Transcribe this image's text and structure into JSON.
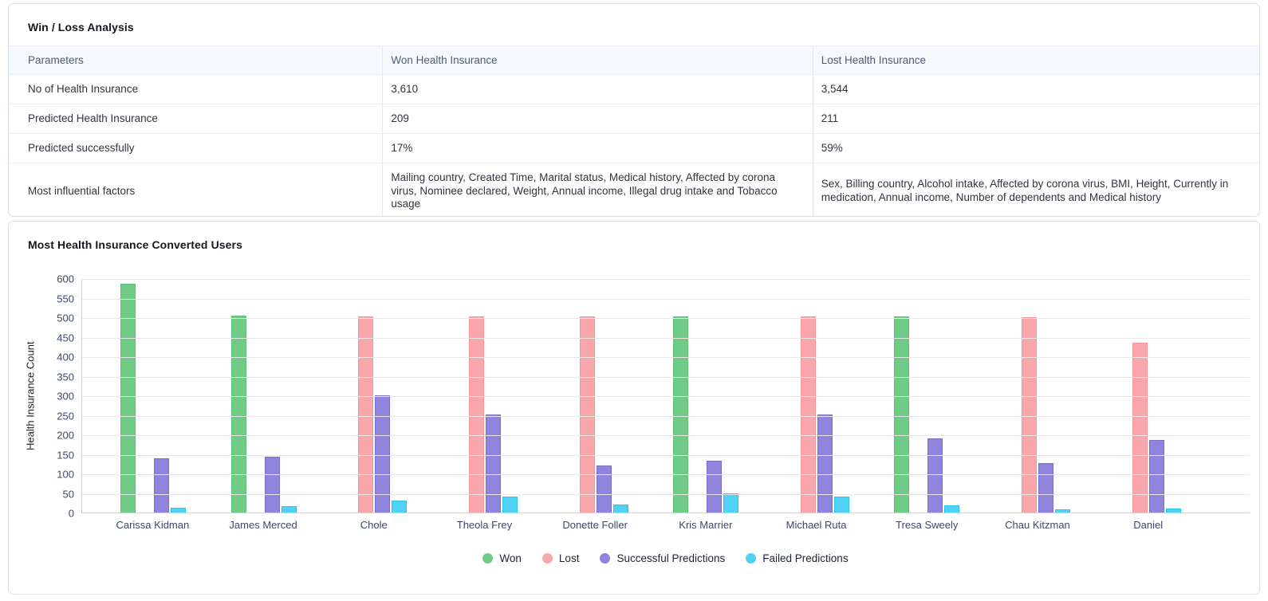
{
  "winloss": {
    "title": "Win / Loss Analysis",
    "table": {
      "columns": [
        "Parameters",
        "Won Health Insurance",
        "Lost Health Insurance"
      ],
      "rows": [
        [
          "No of Health Insurance",
          "3,610",
          "3,544"
        ],
        [
          "Predicted Health Insurance",
          "209",
          "211"
        ],
        [
          "Predicted successfully",
          "17%",
          "59%"
        ],
        [
          "Most influential factors",
          "Mailing country, Created Time, Marital status, Medical history, Affected by corona virus, Nominee declared, Weight, Annual income, Illegal drug intake and Tobacco usage",
          "Sex, Billing country, Alcohol intake, Affected by corona virus, BMI, Height, Currently in medication, Annual income, Number of dependents and Medical history"
        ]
      ]
    }
  },
  "chart_data": {
    "type": "bar",
    "title": "Most Health Insurance Converted Users",
    "ylabel": "Health Insurance Count",
    "xlabel": "",
    "ylim": [
      0,
      600
    ],
    "ytick_step": 50,
    "grid": true,
    "legend_position": "bottom",
    "categories": [
      "Carissa Kidman",
      "James Merced",
      "Chole",
      "Theola Frey",
      "Donette Foller",
      "Kris Marrier",
      "Michael Ruta",
      "Tresa Sweely",
      "Chau Kitzman",
      "Daniel"
    ],
    "series": [
      {
        "name": "Won",
        "color": "#70cb87",
        "border_color": "#5abf77",
        "values": [
          585,
          505,
          0,
          0,
          0,
          502,
          0,
          502,
          0,
          0
        ]
      },
      {
        "name": "Lost",
        "color": "#f8a8ab",
        "border_color": "#f59397",
        "values": [
          0,
          0,
          502,
          502,
          502,
          0,
          502,
          0,
          500,
          435
        ]
      },
      {
        "name": "Successful Predictions",
        "color": "#9184dd",
        "border_color": "#7b6cd0",
        "values": [
          138,
          143,
          300,
          250,
          121,
          132,
          250,
          190,
          127,
          185
        ]
      },
      {
        "name": "Failed Predictions",
        "color": "#4fd2f6",
        "border_color": "#29c6f0",
        "values": [
          13,
          16,
          30,
          40,
          20,
          48,
          40,
          18,
          8,
          10
        ]
      }
    ]
  }
}
